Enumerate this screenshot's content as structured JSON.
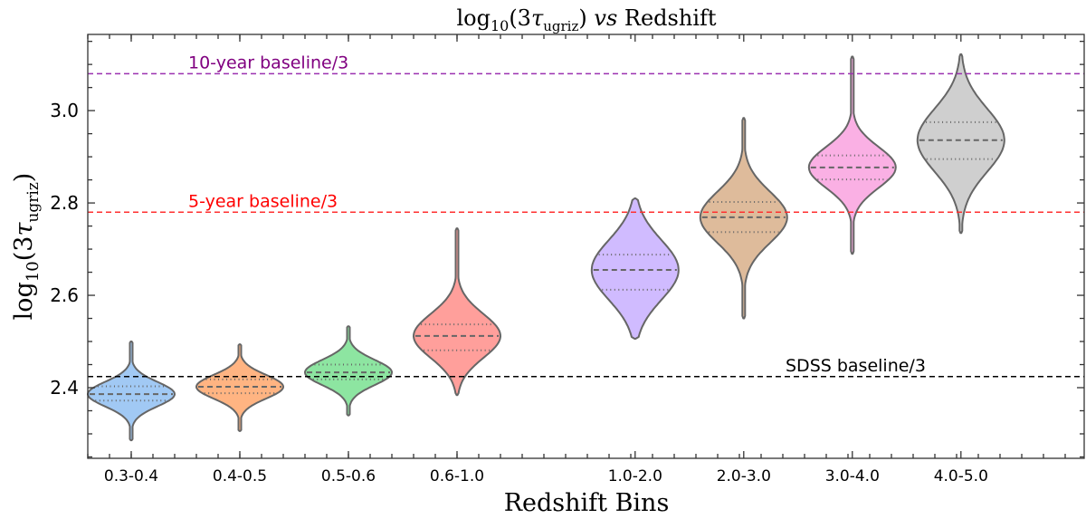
{
  "chart_data": {
    "type": "violin",
    "title": "log10(3τugriz) vs Redshift",
    "title_parts": {
      "log": "log",
      "sub10": "10",
      "open": "(3",
      "tau": "τ",
      "sub": "ugriz",
      "close": ")",
      "vs": "vs",
      "rest": "Redshift"
    },
    "xlabel": "Redshift Bins",
    "ylabel_parts": {
      "log": "log",
      "sub10": "10",
      "open": "(3",
      "tau": "τ",
      "sub": "ugriz",
      "close": ")"
    },
    "ylim": [
      2.247,
      3.165
    ],
    "yticks": [
      2.4,
      2.6,
      2.8,
      3.0
    ],
    "ytick_labels": [
      "2.4",
      "2.6",
      "2.8",
      "3.0"
    ],
    "grid": false,
    "categories": [
      "0.3-0.4",
      "0.4-0.5",
      "0.5-0.6",
      "0.6-1.0",
      "1.0-2.0",
      "2.0-3.0",
      "3.0-4.0",
      "4.0-5.0"
    ],
    "category_positions": [
      0,
      1,
      2,
      3,
      4.64,
      5.64,
      6.64,
      7.64
    ],
    "xlim": [
      -0.4,
      8.775
    ],
    "violins": [
      {
        "min": 2.286,
        "q1": 2.372,
        "median": 2.386,
        "q3": 2.403,
        "max": 2.5,
        "color": "#a1c9f4"
      },
      {
        "min": 2.306,
        "q1": 2.388,
        "median": 2.402,
        "q3": 2.418,
        "max": 2.494,
        "color": "#ffb482"
      },
      {
        "min": 2.34,
        "q1": 2.418,
        "median": 2.433,
        "q3": 2.45,
        "max": 2.533,
        "color": "#8de5a1"
      },
      {
        "min": 2.384,
        "q1": 2.481,
        "median": 2.512,
        "q3": 2.537,
        "max": 2.745,
        "color": "#ff9f9b"
      },
      {
        "min": 2.506,
        "q1": 2.612,
        "median": 2.655,
        "q3": 2.688,
        "max": 2.81,
        "color": "#d0bbff"
      },
      {
        "min": 2.55,
        "q1": 2.737,
        "median": 2.769,
        "q3": 2.802,
        "max": 2.984,
        "color": "#debb9b"
      },
      {
        "min": 2.69,
        "q1": 2.851,
        "median": 2.877,
        "q3": 2.903,
        "max": 3.117,
        "color": "#fab0e4"
      },
      {
        "min": 2.735,
        "q1": 2.895,
        "median": 2.936,
        "q3": 2.975,
        "max": 3.122,
        "color": "#cfcfcf"
      }
    ],
    "reference_lines": [
      {
        "label": "10-year baseline/3",
        "value": 3.08,
        "color": "#9b30b0",
        "text_color": "#800080"
      },
      {
        "label": "5-year baseline/3",
        "value": 2.78,
        "color": "#ff3030",
        "text_color": "#ff0000"
      },
      {
        "label": "SDSS baseline/3",
        "value": 2.424,
        "color": "#000000",
        "text_color": "#000000"
      }
    ]
  }
}
